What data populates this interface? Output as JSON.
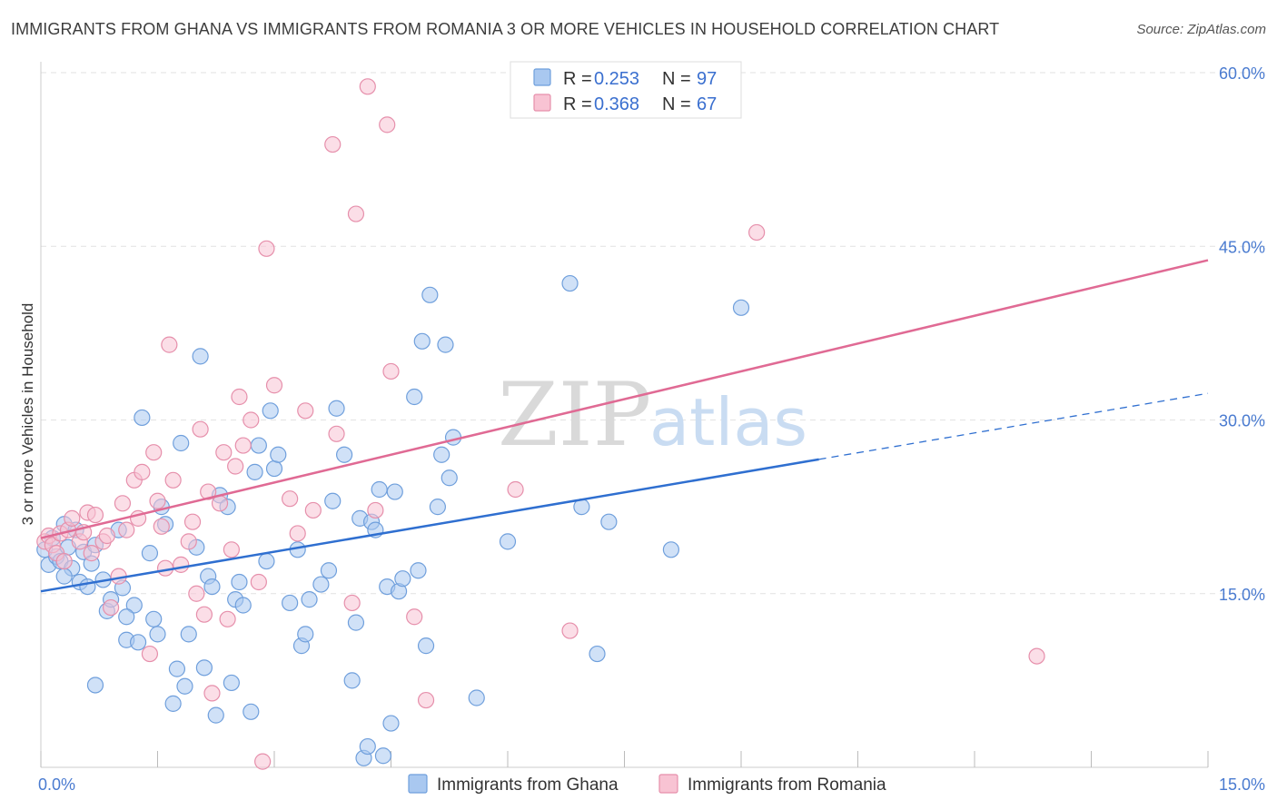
{
  "title": "IMMIGRANTS FROM GHANA VS IMMIGRANTS FROM ROMANIA 3 OR MORE VEHICLES IN HOUSEHOLD CORRELATION CHART",
  "source": "Source: ZipAtlas.com",
  "watermark": {
    "zip": "ZIP",
    "atlas": "atlas"
  },
  "legend": [
    {
      "r_label": "R =",
      "r_value": "0.253",
      "n_label": "N =",
      "n_value": "97",
      "color": "#a9c8f0",
      "stroke": "#6f9fdc"
    },
    {
      "r_label": "R =",
      "r_value": "0.368",
      "n_label": "N =",
      "n_value": "67",
      "color": "#f8c3d3",
      "stroke": "#e68fab"
    }
  ],
  "chart_data": {
    "type": "scatter",
    "title": "IMMIGRANTS FROM GHANA VS IMMIGRANTS FROM ROMANIA 3 OR MORE VEHICLES IN HOUSEHOLD CORRELATION CHART",
    "xlabel": "",
    "ylabel": "3 or more Vehicles in Household",
    "xlim": [
      0,
      15
    ],
    "ylim": [
      0,
      60
    ],
    "x_tick_labels": [
      "0.0%",
      "15.0%"
    ],
    "y_ticks": [
      15,
      30,
      45,
      60
    ],
    "y_tick_labels": [
      "15.0%",
      "30.0%",
      "45.0%",
      "60.0%"
    ],
    "grid": true,
    "legend_position": "top-center",
    "series": [
      {
        "name": "Immigrants from Ghana",
        "color": "#a9c8f0",
        "stroke": "#6f9fdc",
        "trend_color": "#2f6fd0",
        "trend": {
          "x0": 0,
          "y0": 15.2,
          "x1": 10.0,
          "y1": 26.6,
          "dash_to_x": 15.0,
          "dash_to_y": 32.3
        },
        "points": [
          [
            0.05,
            18.8
          ],
          [
            0.1,
            17.5
          ],
          [
            0.15,
            19.8
          ],
          [
            0.2,
            18.2
          ],
          [
            0.25,
            17.8
          ],
          [
            0.3,
            21.0
          ],
          [
            0.35,
            19.0
          ],
          [
            0.4,
            17.2
          ],
          [
            0.45,
            20.5
          ],
          [
            0.5,
            16.0
          ],
          [
            0.55,
            18.6
          ],
          [
            0.6,
            15.6
          ],
          [
            0.65,
            17.6
          ],
          [
            0.7,
            19.2
          ],
          [
            0.8,
            16.2
          ],
          [
            0.85,
            13.5
          ],
          [
            0.9,
            14.5
          ],
          [
            1.0,
            20.5
          ],
          [
            1.05,
            15.5
          ],
          [
            1.1,
            11.0
          ],
          [
            1.2,
            14.0
          ],
          [
            1.25,
            10.8
          ],
          [
            1.3,
            30.2
          ],
          [
            1.4,
            18.5
          ],
          [
            1.45,
            12.8
          ],
          [
            1.5,
            11.5
          ],
          [
            1.55,
            22.5
          ],
          [
            1.6,
            21.0
          ],
          [
            1.7,
            5.5
          ],
          [
            1.75,
            8.5
          ],
          [
            1.8,
            28.0
          ],
          [
            1.85,
            7.0
          ],
          [
            1.9,
            11.5
          ],
          [
            2.0,
            19.0
          ],
          [
            2.05,
            35.5
          ],
          [
            2.1,
            8.6
          ],
          [
            2.15,
            16.5
          ],
          [
            2.2,
            15.6
          ],
          [
            2.25,
            4.5
          ],
          [
            2.3,
            23.5
          ],
          [
            2.4,
            22.5
          ],
          [
            2.45,
            7.3
          ],
          [
            2.5,
            14.5
          ],
          [
            2.55,
            16.0
          ],
          [
            2.6,
            14.0
          ],
          [
            2.7,
            4.8
          ],
          [
            2.75,
            25.5
          ],
          [
            2.8,
            27.8
          ],
          [
            2.9,
            17.8
          ],
          [
            2.95,
            30.8
          ],
          [
            3.0,
            25.8
          ],
          [
            3.05,
            27.0
          ],
          [
            3.2,
            14.2
          ],
          [
            3.3,
            18.8
          ],
          [
            3.35,
            10.5
          ],
          [
            3.4,
            11.5
          ],
          [
            3.45,
            14.5
          ],
          [
            3.6,
            15.8
          ],
          [
            3.7,
            17.0
          ],
          [
            3.75,
            23.0
          ],
          [
            3.8,
            31.0
          ],
          [
            3.9,
            27.0
          ],
          [
            4.0,
            7.5
          ],
          [
            4.05,
            12.5
          ],
          [
            4.1,
            21.5
          ],
          [
            4.15,
            0.8
          ],
          [
            4.2,
            1.8
          ],
          [
            4.25,
            21.2
          ],
          [
            4.3,
            20.5
          ],
          [
            4.35,
            24.0
          ],
          [
            4.4,
            1.0
          ],
          [
            4.45,
            15.6
          ],
          [
            4.5,
            3.8
          ],
          [
            4.55,
            23.8
          ],
          [
            4.6,
            15.2
          ],
          [
            4.65,
            16.3
          ],
          [
            4.8,
            32.0
          ],
          [
            4.85,
            17.0
          ],
          [
            4.9,
            36.8
          ],
          [
            4.95,
            10.5
          ],
          [
            5.0,
            40.8
          ],
          [
            5.1,
            22.5
          ],
          [
            5.15,
            27.0
          ],
          [
            5.2,
            36.5
          ],
          [
            5.25,
            25.0
          ],
          [
            5.3,
            28.5
          ],
          [
            5.6,
            6.0
          ],
          [
            6.0,
            19.5
          ],
          [
            6.8,
            41.8
          ],
          [
            6.95,
            22.5
          ],
          [
            7.15,
            9.8
          ],
          [
            7.3,
            21.2
          ],
          [
            8.1,
            18.8
          ],
          [
            9.0,
            39.7
          ],
          [
            0.3,
            16.5
          ],
          [
            0.7,
            7.1
          ],
          [
            1.1,
            13.0
          ]
        ]
      },
      {
        "name": "Immigrants from Romania",
        "color": "#f8c3d3",
        "stroke": "#e68fab",
        "trend_color": "#e06a94",
        "trend": {
          "x0": 0,
          "y0": 19.8,
          "x1": 15.0,
          "y1": 43.8
        },
        "points": [
          [
            0.05,
            19.5
          ],
          [
            0.1,
            20.0
          ],
          [
            0.15,
            19.2
          ],
          [
            0.2,
            18.5
          ],
          [
            0.25,
            20.2
          ],
          [
            0.3,
            17.8
          ],
          [
            0.35,
            20.5
          ],
          [
            0.4,
            21.5
          ],
          [
            0.5,
            19.5
          ],
          [
            0.55,
            20.3
          ],
          [
            0.6,
            22.0
          ],
          [
            0.65,
            18.5
          ],
          [
            0.7,
            21.8
          ],
          [
            0.8,
            19.5
          ],
          [
            0.85,
            20.0
          ],
          [
            0.9,
            13.8
          ],
          [
            1.0,
            16.5
          ],
          [
            1.05,
            22.8
          ],
          [
            1.1,
            20.5
          ],
          [
            1.2,
            24.8
          ],
          [
            1.25,
            21.5
          ],
          [
            1.3,
            25.5
          ],
          [
            1.4,
            9.8
          ],
          [
            1.45,
            27.2
          ],
          [
            1.5,
            23.0
          ],
          [
            1.55,
            20.8
          ],
          [
            1.6,
            17.2
          ],
          [
            1.65,
            36.5
          ],
          [
            1.7,
            24.8
          ],
          [
            1.8,
            17.5
          ],
          [
            1.9,
            19.5
          ],
          [
            1.95,
            21.2
          ],
          [
            2.0,
            15.0
          ],
          [
            2.05,
            29.2
          ],
          [
            2.1,
            13.2
          ],
          [
            2.15,
            23.8
          ],
          [
            2.2,
            6.4
          ],
          [
            2.3,
            22.8
          ],
          [
            2.35,
            27.2
          ],
          [
            2.4,
            12.8
          ],
          [
            2.45,
            18.8
          ],
          [
            2.5,
            26.0
          ],
          [
            2.55,
            32.0
          ],
          [
            2.6,
            27.8
          ],
          [
            2.7,
            30.0
          ],
          [
            2.8,
            16.0
          ],
          [
            2.85,
            0.5
          ],
          [
            2.9,
            44.8
          ],
          [
            3.0,
            33.0
          ],
          [
            3.2,
            23.2
          ],
          [
            3.3,
            20.2
          ],
          [
            3.4,
            30.8
          ],
          [
            3.5,
            22.2
          ],
          [
            3.75,
            53.8
          ],
          [
            3.8,
            28.8
          ],
          [
            4.0,
            14.2
          ],
          [
            4.05,
            47.8
          ],
          [
            4.2,
            58.8
          ],
          [
            4.3,
            22.2
          ],
          [
            4.45,
            55.5
          ],
          [
            4.5,
            34.2
          ],
          [
            4.8,
            13.0
          ],
          [
            4.95,
            5.8
          ],
          [
            6.1,
            24.0
          ],
          [
            6.8,
            11.8
          ],
          [
            9.2,
            46.2
          ],
          [
            12.8,
            9.6
          ]
        ]
      }
    ]
  },
  "bottom_legend": [
    {
      "label": "Immigrants from Ghana"
    },
    {
      "label": "Immigrants from Romania"
    }
  ]
}
